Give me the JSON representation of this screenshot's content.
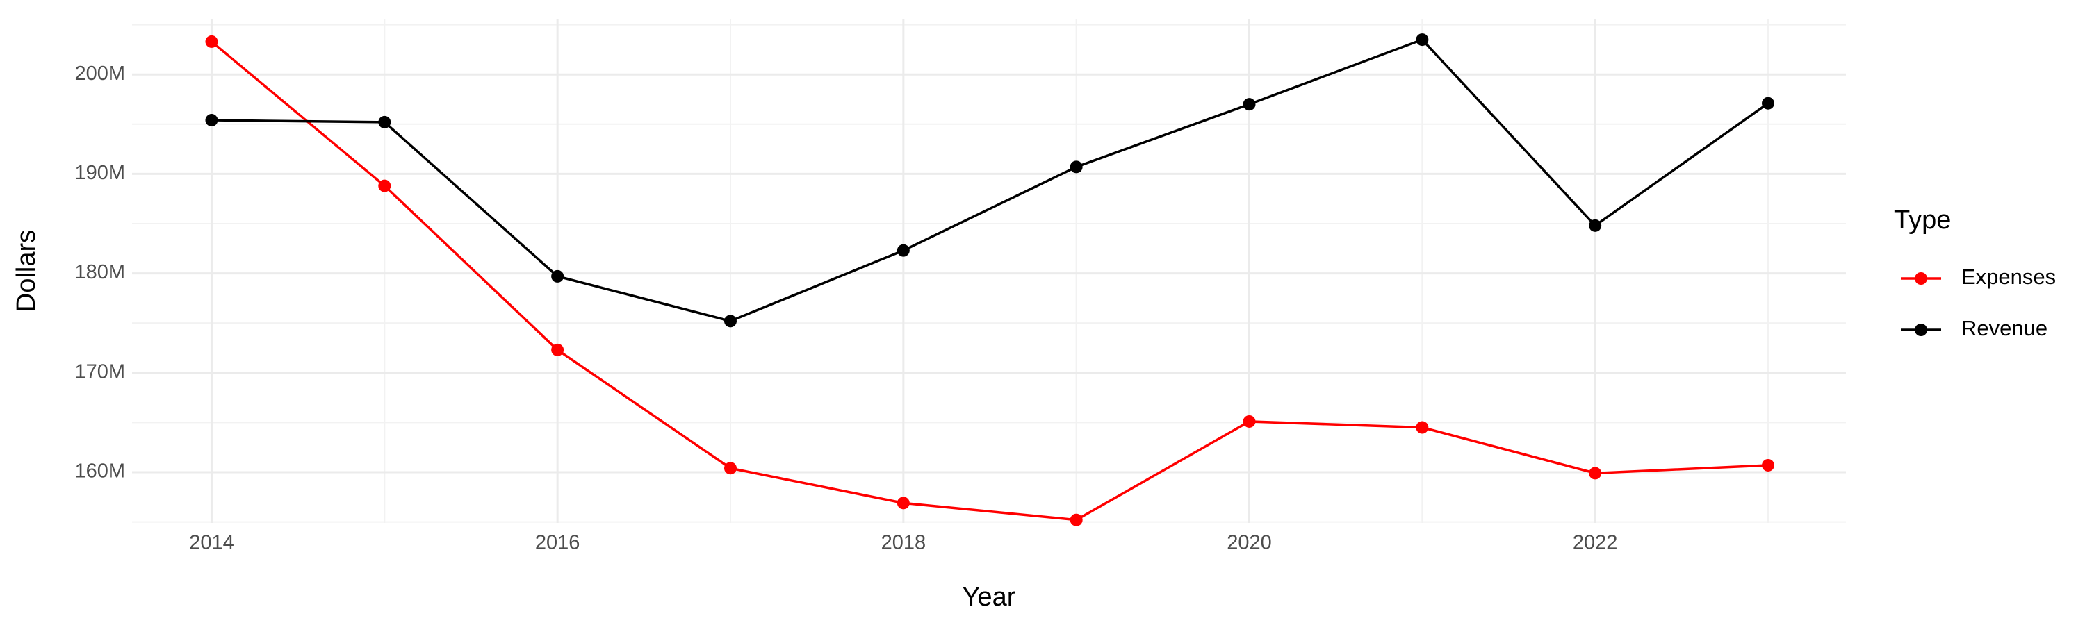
{
  "chart_data": {
    "type": "line",
    "x_label": "Year",
    "y_label": "Dollars",
    "legend_title": "Type",
    "x": [
      2014,
      2015,
      2016,
      2017,
      2018,
      2019,
      2020,
      2021,
      2022,
      2023
    ],
    "series": [
      {
        "name": "Expenses",
        "color": "#ff0000",
        "values": [
          203300000,
          188800000,
          172300000,
          160400000,
          156900000,
          155200000,
          165100000,
          164500000,
          159900000,
          160700000
        ]
      },
      {
        "name": "Revenue",
        "color": "#000000",
        "values": [
          195400000,
          195200000,
          179700000,
          175200000,
          182300000,
          190700000,
          197000000,
          203500000,
          184800000,
          197100000
        ]
      }
    ],
    "xlim": [
      2013.54,
      2023.45
    ],
    "xticks": [
      2014,
      2016,
      2018,
      2020,
      2022
    ],
    "ylim": [
      154900000,
      205600000
    ],
    "yticks": [
      {
        "value": 160000000,
        "label": "160M"
      },
      {
        "value": 170000000,
        "label": "170M"
      },
      {
        "value": 180000000,
        "label": "180M"
      },
      {
        "value": 190000000,
        "label": "190M"
      },
      {
        "value": 200000000,
        "label": "200M"
      }
    ],
    "grid": true,
    "legend_position": "right"
  }
}
